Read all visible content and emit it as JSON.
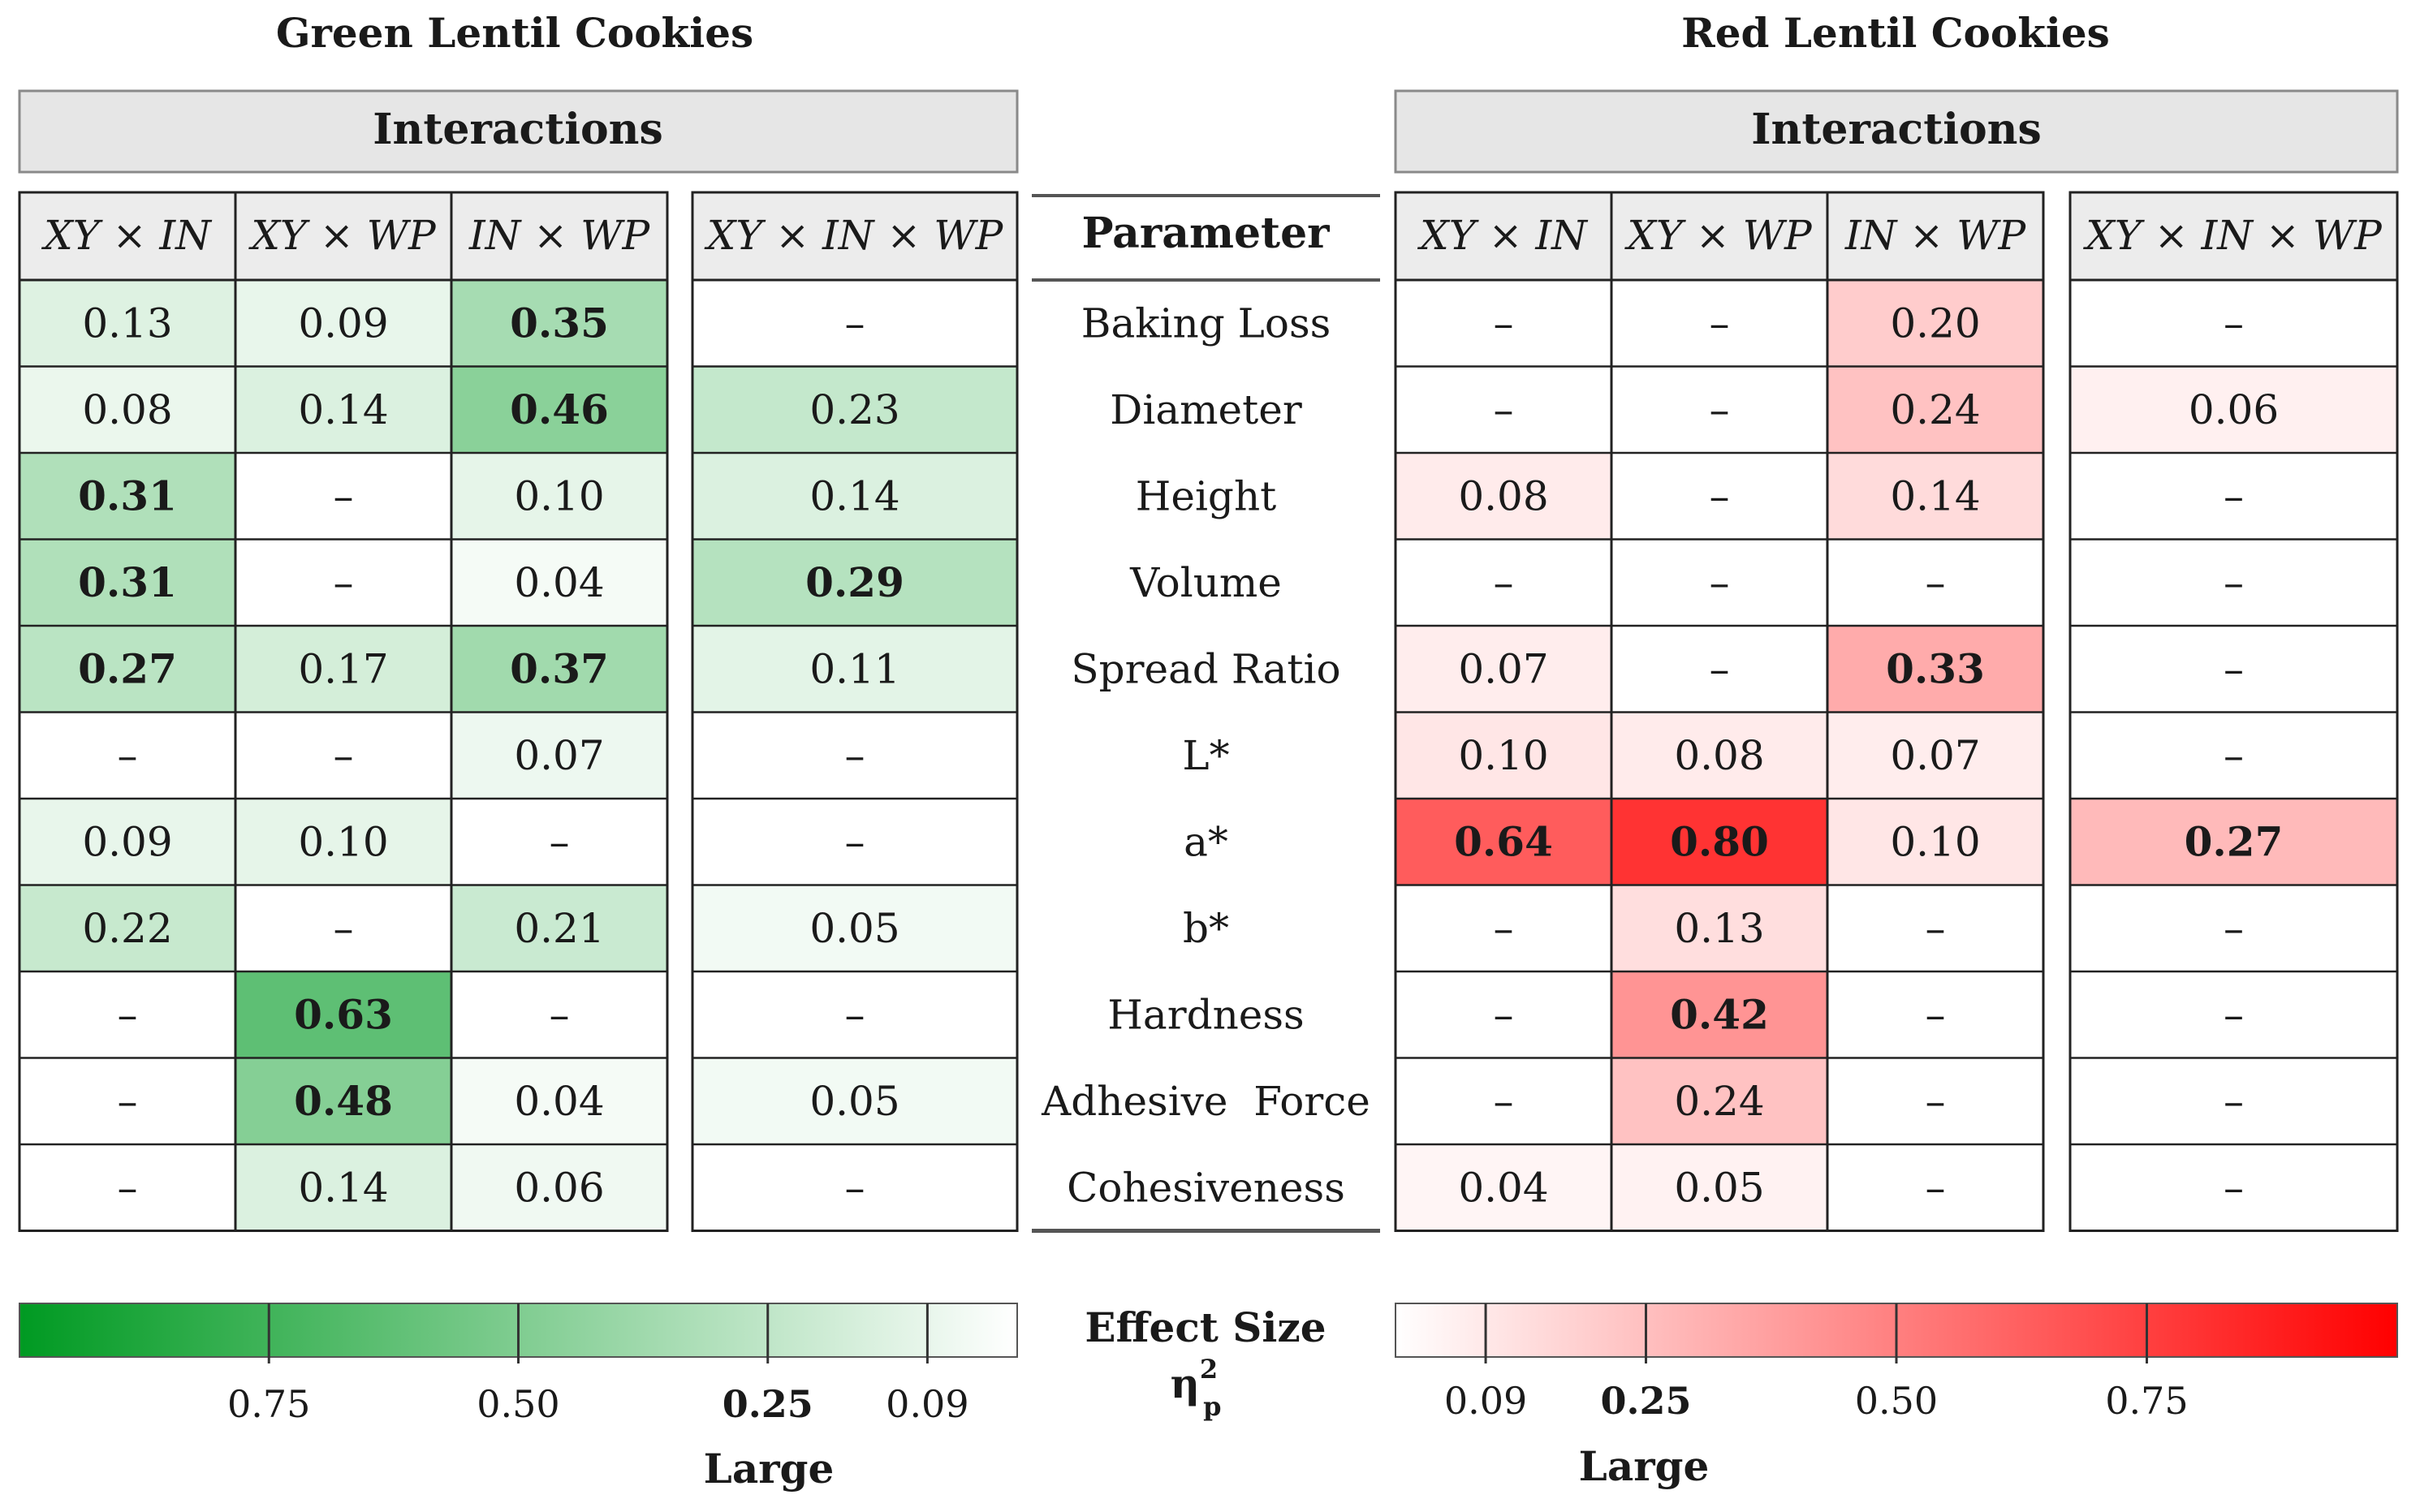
{
  "chart_data": {
    "type": "heatmap",
    "value_name": "partial eta squared",
    "absent_symbol": "–",
    "parameter_header": "Parameter",
    "parameters": [
      "Baking Loss",
      "Diameter",
      "Height",
      "Volume",
      "Spread Ratio",
      "L*",
      "a*",
      "b*",
      "Hardness",
      "Adhesive  Force",
      "Cohesiveness"
    ],
    "left": {
      "title": "Green Lentil Cookies",
      "group_label": "Interactions",
      "color": "#009a22",
      "columns": [
        {
          "label": "XY × IN",
          "values": [
            0.13,
            0.08,
            0.31,
            0.31,
            0.27,
            null,
            0.09,
            0.22,
            null,
            null,
            null
          ]
        },
        {
          "label": "XY × WP",
          "values": [
            0.09,
            0.14,
            null,
            null,
            0.17,
            null,
            0.1,
            null,
            0.63,
            0.48,
            0.14
          ]
        },
        {
          "label": "IN × WP",
          "values": [
            0.35,
            0.46,
            0.1,
            0.04,
            0.37,
            0.07,
            null,
            0.21,
            null,
            0.04,
            0.06
          ]
        },
        {
          "label": "XY × IN × WP",
          "values": [
            null,
            0.23,
            0.14,
            0.29,
            0.11,
            null,
            null,
            0.05,
            null,
            0.05,
            null
          ]
        }
      ]
    },
    "right": {
      "title": "Red Lentil Cookies",
      "group_label": "Interactions",
      "color": "#ff0000",
      "columns": [
        {
          "label": "XY × IN",
          "values": [
            null,
            null,
            0.08,
            null,
            0.07,
            0.1,
            0.64,
            null,
            null,
            null,
            0.04
          ]
        },
        {
          "label": "XY × WP",
          "values": [
            null,
            null,
            null,
            null,
            null,
            0.08,
            0.8,
            0.13,
            0.42,
            0.24,
            0.05
          ]
        },
        {
          "label": "IN × WP",
          "values": [
            0.2,
            0.24,
            0.14,
            null,
            0.33,
            0.07,
            0.1,
            null,
            null,
            null,
            null
          ]
        },
        {
          "label": "XY × IN × WP",
          "values": [
            null,
            0.06,
            null,
            null,
            null,
            null,
            0.27,
            null,
            null,
            null,
            null
          ]
        }
      ]
    },
    "bold_threshold": 0.25,
    "legend": {
      "title": "Effect Size",
      "symbol_main": "η",
      "symbol_sup": "2",
      "symbol_sub": "p",
      "range": [
        0,
        1
      ],
      "left_ticks": [
        0.75,
        0.5,
        0.25,
        0.09
      ],
      "left_tick_labels": [
        "0.75",
        "0.50",
        "0.25",
        "0.09"
      ],
      "right_ticks": [
        0.09,
        0.25,
        0.5,
        0.75
      ],
      "right_tick_labels": [
        "0.09",
        "0.25",
        "0.50",
        "0.75"
      ],
      "large_threshold": 0.25,
      "large_label": "Large"
    }
  }
}
